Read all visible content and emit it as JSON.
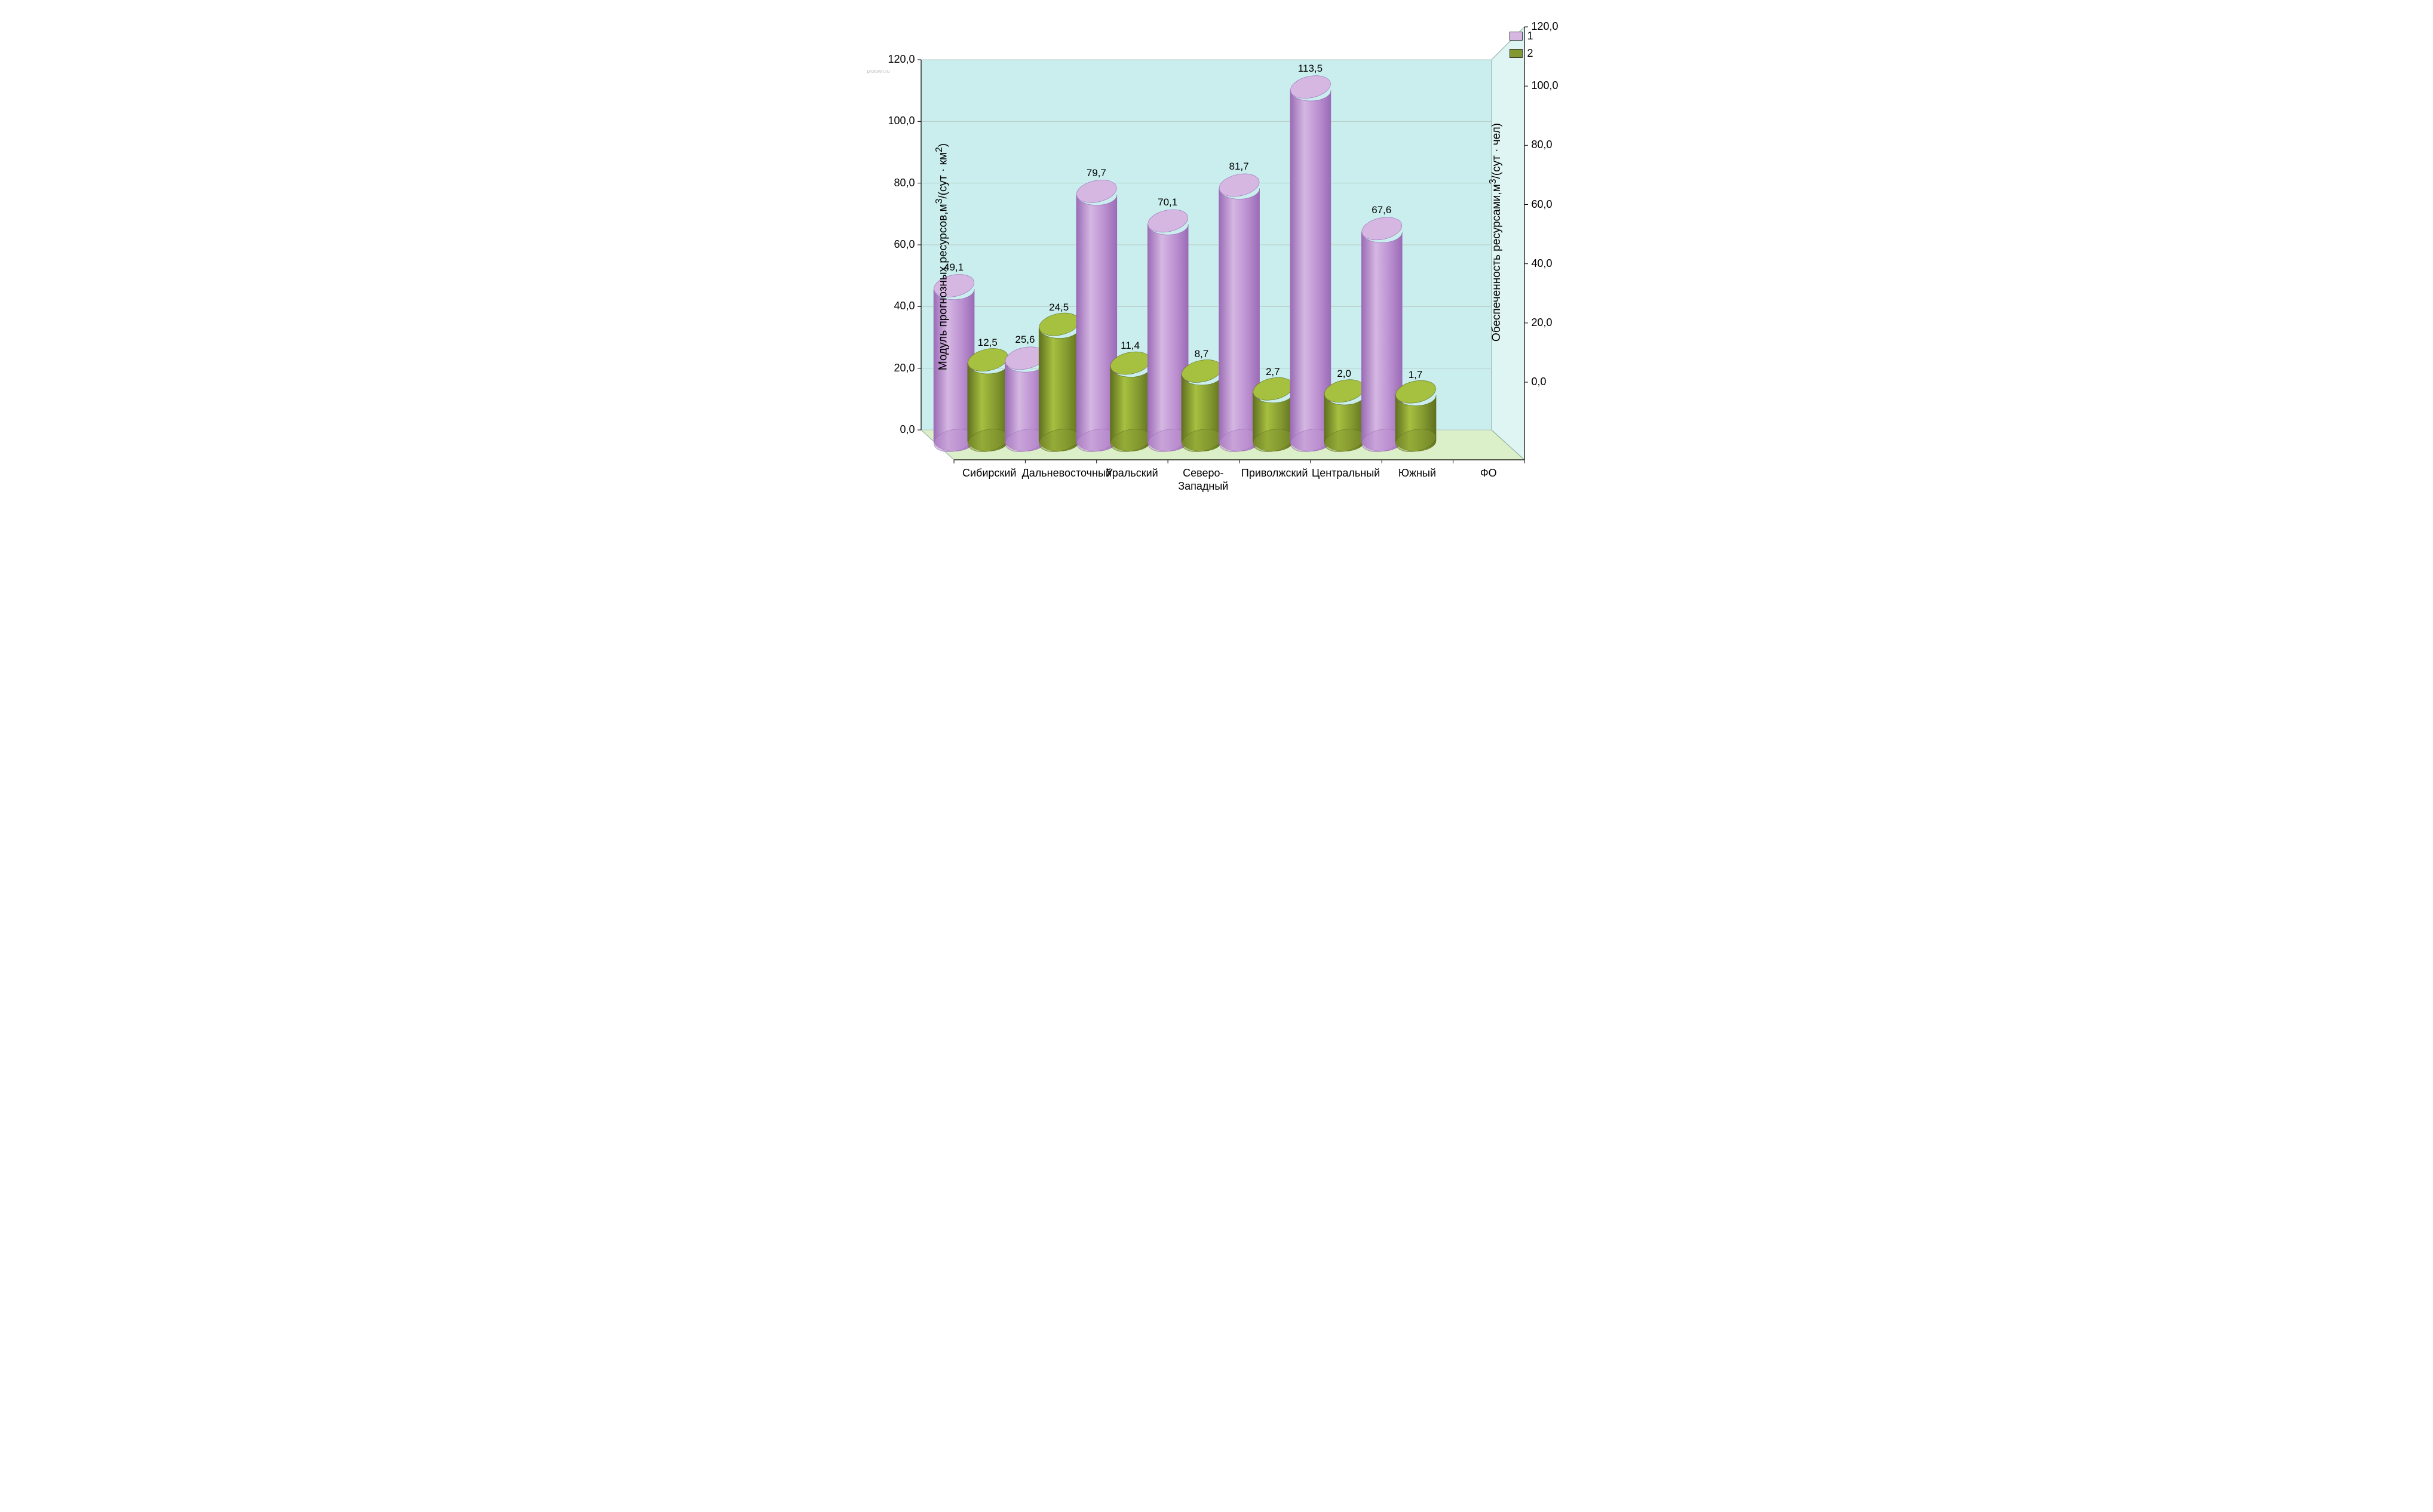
{
  "chart": {
    "type": "3d-cylinder-bar-dual-axis",
    "background_plot": "#c9eeed",
    "background_floor": "#dbefc8",
    "wall_border": "#8aa89a",
    "gridline_color": "#b8ccc4",
    "left_axis": {
      "label": "Модуль прогнозных ресурсов,м³/(сут · км²)",
      "min": 0,
      "max": 120,
      "step": 20,
      "ticks": [
        "0,0",
        "20,0",
        "40,0",
        "60,0",
        "80,0",
        "100,0",
        "120,0"
      ]
    },
    "right_axis": {
      "label": "Обеспеченность ресурсами,м³/(сут · чел)",
      "min": 0,
      "max": 120,
      "step": 20,
      "ticks": [
        "0,0",
        "20,0",
        "40,0",
        "60,0",
        "80,0",
        "100,0",
        "120,0"
      ]
    },
    "categories": [
      "Сибирский",
      "Дальневосточный",
      "Уральский",
      "Северо-\nЗападный",
      "Приволжский",
      "Центральный",
      "Южный",
      "ФО"
    ],
    "series": [
      {
        "name": "1",
        "color_light": "#d5b7e2",
        "color_mid": "#bb8fd0",
        "color_dark": "#9a6bb6",
        "values": [
          49.1,
          25.6,
          79.7,
          70.1,
          81.7,
          113.5,
          67.6,
          null
        ],
        "labels": [
          "49,1",
          "25,6",
          "79,7",
          "70,1",
          "81,7",
          "113,5",
          "67,6",
          ""
        ],
        "axis": "left"
      },
      {
        "name": "2",
        "color_light": "#a6c040",
        "color_mid": "#83982f",
        "color_dark": "#5f6f1f",
        "values": [
          12.5,
          24.5,
          11.4,
          8.7,
          2.7,
          2.0,
          1.7,
          null
        ],
        "labels": [
          "12,5",
          "24,5",
          "11,4",
          "8,7",
          "2,7",
          "2,0",
          "1,7",
          ""
        ],
        "axis": "right"
      }
    ],
    "legend": {
      "items": [
        "1",
        "2"
      ]
    },
    "watermark": "protown.ru",
    "fontsize_axis": 19,
    "fontsize_tick": 18,
    "fontsize_value": 17
  }
}
